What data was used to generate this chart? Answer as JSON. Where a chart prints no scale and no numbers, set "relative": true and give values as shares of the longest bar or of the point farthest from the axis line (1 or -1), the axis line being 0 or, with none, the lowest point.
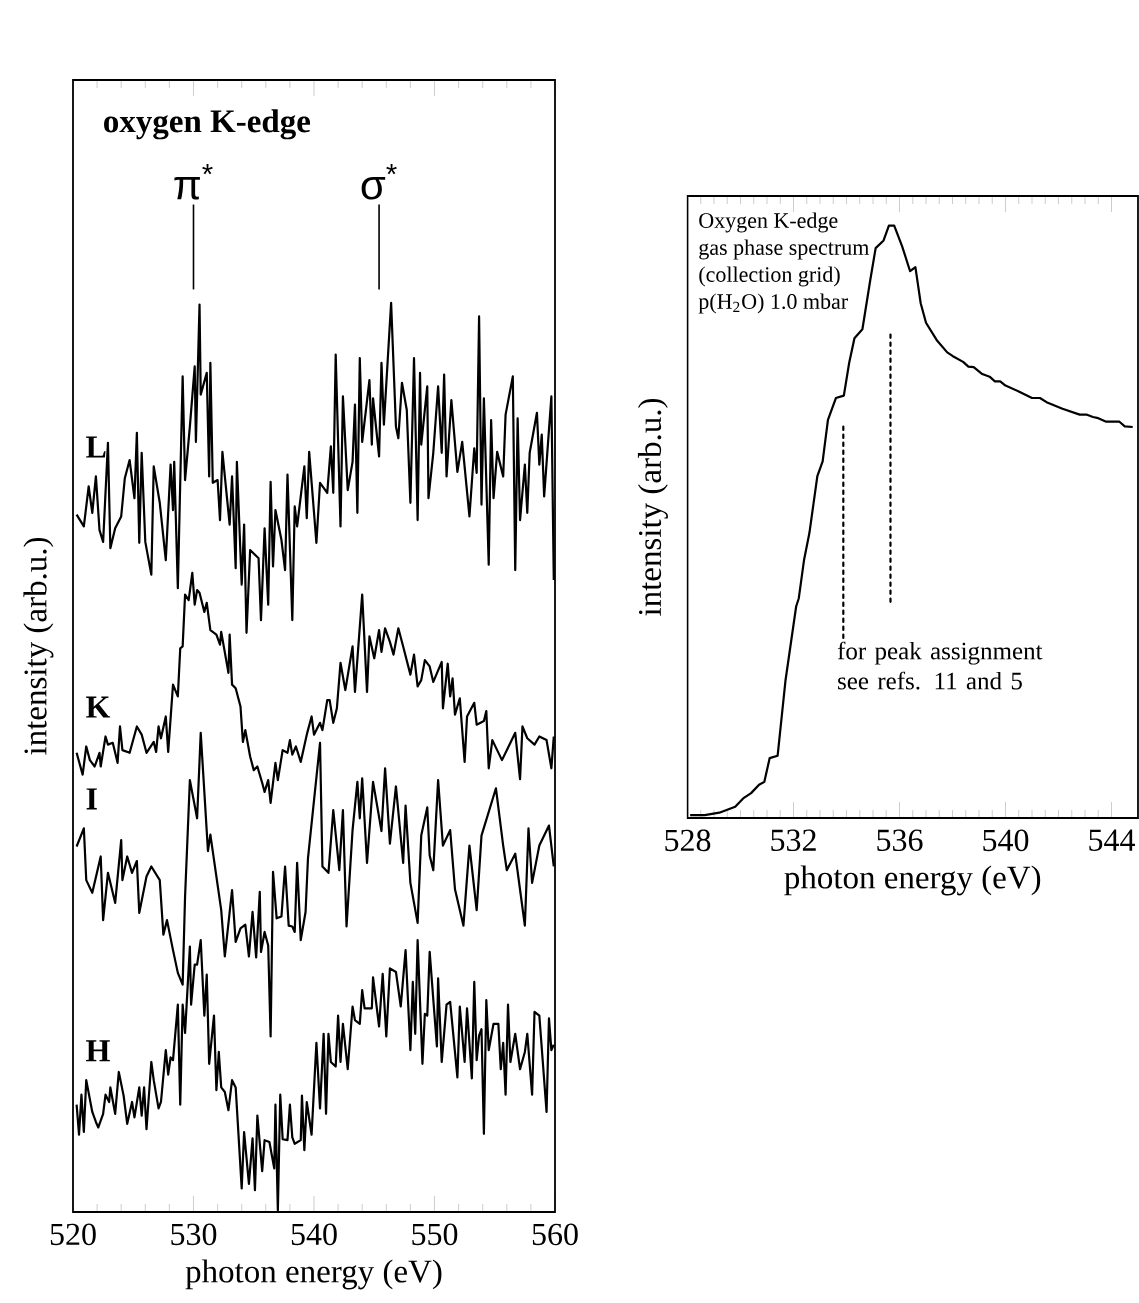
{
  "chart_data": [
    {
      "type": "line",
      "title": "oxygen K-edge",
      "xlabel": "photon energy (eV)",
      "ylabel": "intensity  (arb.u.)",
      "relative": true,
      "tick_labels": "x",
      "xlim": [
        520,
        560
      ],
      "xticks": [
        520,
        530,
        540,
        550,
        560
      ],
      "ref_lines": [
        {
          "axis": "x",
          "value": 530,
          "label": "π$^{*}$"
        },
        {
          "axis": "x",
          "value": 545.4,
          "label": "σ$^{*}$"
        }
      ],
      "series": [
        {
          "name": "L",
          "color": "#000000",
          "x": [
            520.3,
            520.9,
            521.3,
            521.6,
            521.9,
            522.2,
            522.5,
            522.9,
            523.1,
            523.5,
            524.0,
            524.3,
            524.7,
            525.1,
            525.3,
            525.5,
            525.7,
            526.0,
            526.5,
            526.7,
            527.2,
            527.7,
            528.1,
            528.3,
            528.4,
            528.7,
            529.1,
            529.3,
            529.7,
            530.1,
            530.2,
            530.5,
            530.6,
            531.1,
            531.3,
            531.4,
            531.6,
            532.0,
            532.2,
            532.4,
            533.0,
            533.2,
            533.5,
            533.6,
            534.0,
            534.2,
            534.4,
            534.7,
            535.4,
            535.6,
            535.9,
            536.2,
            536.4,
            536.6,
            536.8,
            537.3,
            537.6,
            537.8,
            538.2,
            538.4,
            538.6,
            539.2,
            539.4,
            539.6,
            540.2,
            540.5,
            541.1,
            541.4,
            541.6,
            541.8,
            542.2,
            542.4,
            542.8,
            543.2,
            543.4,
            543.6,
            543.8,
            544.0,
            544.6,
            544.8,
            544.9,
            545.4,
            545.6,
            545.8,
            546.4,
            546.8,
            547.0,
            547.3,
            547.7,
            548.0,
            548.3,
            548.6,
            548.8,
            548.9,
            549.4,
            549.5,
            549.9,
            550.3,
            550.6,
            550.8,
            551.0,
            551.4,
            551.9,
            552.3,
            552.9,
            553.3,
            553.5,
            553.7,
            553.9,
            554.1,
            554.5,
            554.7,
            554.9,
            555.2,
            555.7,
            555.9,
            556.5,
            556.7,
            556.9,
            557.1,
            557.5,
            557.7,
            557.9,
            558.5,
            558.7,
            558.9,
            559.1,
            559.7,
            559.9
          ],
          "values": [
            0.767,
            0.754,
            0.798,
            0.769,
            0.809,
            0.75,
            0.737,
            0.846,
            0.73,
            0.752,
            0.765,
            0.807,
            0.827,
            0.785,
            0.857,
            0.736,
            0.835,
            0.737,
            0.701,
            0.82,
            0.78,
            0.717,
            0.822,
            0.772,
            0.825,
            0.686,
            0.919,
            0.805,
            0.864,
            0.93,
            0.847,
            0.998,
            0.899,
            0.923,
            0.809,
            0.934,
            0.802,
            0.805,
            0.761,
            0.836,
            0.756,
            0.809,
            0.708,
            0.825,
            0.69,
            0.756,
            0.637,
            0.728,
            0.719,
            0.651,
            0.752,
            0.668,
            0.803,
            0.71,
            0.772,
            0.739,
            0.706,
            0.811,
            0.651,
            0.776,
            0.754,
            0.82,
            0.763,
            0.836,
            0.736,
            0.802,
            0.791,
            0.842,
            0.791,
            0.943,
            0.754,
            0.897,
            0.794,
            0.825,
            0.888,
            0.769,
            0.939,
            0.847,
            0.915,
            0.844,
            0.895,
            0.831,
            0.934,
            0.866,
            1.0,
            0.864,
            0.851,
            0.912,
            0.882,
            0.78,
            0.939,
            0.761,
            0.923,
            0.844,
            0.908,
            0.785,
            0.835,
            0.908,
            0.835,
            0.921,
            0.809,
            0.893,
            0.814,
            0.847,
            0.765,
            0.84,
            0.813,
            0.985,
            0.778,
            0.895,
            0.712,
            0.871,
            0.785,
            0.836,
            0.809,
            0.877,
            0.919,
            0.706,
            0.873,
            0.761,
            0.822,
            0.769,
            0.835,
            0.879,
            0.822,
            0.855,
            0.787,
            0.897,
            0.695
          ]
        },
        {
          "name": "K",
          "color": "#000000",
          "x": [
            520.3,
            520.8,
            521.1,
            521.4,
            521.8,
            522.2,
            522.3,
            522.7,
            522.9,
            523.3,
            523.7,
            523.9,
            524.1,
            524.7,
            525.3,
            525.7,
            526.1,
            526.7,
            526.9,
            527.1,
            527.3,
            527.7,
            527.9,
            528.3,
            528.7,
            528.9,
            529.1,
            529.3,
            529.6,
            529.9,
            530.1,
            530.3,
            530.5,
            530.9,
            531.1,
            531.4,
            531.9,
            532.2,
            532.3,
            532.9,
            533.0,
            533.2,
            533.5,
            533.9,
            534.1,
            534.3,
            534.7,
            535.0,
            535.3,
            535.7,
            535.9,
            536.2,
            536.4,
            536.8,
            537.0,
            537.4,
            537.8,
            538.0,
            538.2,
            538.5,
            538.9,
            539.4,
            539.8,
            540.0,
            540.5,
            540.7,
            541.1,
            541.3,
            541.6,
            541.9,
            542.2,
            542.6,
            543.2,
            543.4,
            544.0,
            544.4,
            544.6,
            545.0,
            545.4,
            545.6,
            545.9,
            546.3,
            546.6,
            547.0,
            547.4,
            548.0,
            548.3,
            548.6,
            548.9,
            549.2,
            549.6,
            549.9,
            550.6,
            550.7,
            551.1,
            551.3,
            551.5,
            551.7,
            552.1,
            552.5,
            552.7,
            553.3,
            553.5,
            554.1,
            554.3,
            554.5,
            554.8,
            555.6,
            556.3,
            556.7,
            557.1,
            557.3,
            557.7,
            558.3,
            558.7,
            559.3,
            559.7,
            559.9
          ],
          "values": [
            0.505,
            0.481,
            0.512,
            0.497,
            0.49,
            0.505,
            0.49,
            0.523,
            0.514,
            0.516,
            0.494,
            0.534,
            0.508,
            0.505,
            0.534,
            0.525,
            0.505,
            0.517,
            0.506,
            0.534,
            0.521,
            0.545,
            0.506,
            0.58,
            0.567,
            0.62,
            0.622,
            0.679,
            0.673,
            0.703,
            0.668,
            0.684,
            0.681,
            0.66,
            0.67,
            0.64,
            0.635,
            0.624,
            0.638,
            0.593,
            0.635,
            0.58,
            0.576,
            0.556,
            0.517,
            0.53,
            0.501,
            0.486,
            0.49,
            0.472,
            0.462,
            0.475,
            0.45,
            0.494,
            0.475,
            0.508,
            0.505,
            0.519,
            0.503,
            0.512,
            0.495,
            0.525,
            0.545,
            0.525,
            0.538,
            0.53,
            0.563,
            0.563,
            0.538,
            0.554,
            0.604,
            0.574,
            0.622,
            0.572,
            0.679,
            0.572,
            0.633,
            0.609,
            0.64,
            0.616,
            0.642,
            0.627,
            0.613,
            0.642,
            0.622,
            0.591,
            0.613,
            0.578,
            0.585,
            0.607,
            0.6,
            0.583,
            0.605,
            0.554,
            0.603,
            0.567,
            0.587,
            0.547,
            0.565,
            0.495,
            0.545,
            0.56,
            0.536,
            0.54,
            0.551,
            0.488,
            0.519,
            0.497,
            0.516,
            0.527,
            0.476,
            0.534,
            0.521,
            0.514,
            0.523,
            0.519,
            0.488,
            0.523
          ]
        },
        {
          "name": "I",
          "color": "#000000",
          "x": [
            520.3,
            520.9,
            521.1,
            521.6,
            522.3,
            522.5,
            522.9,
            523.5,
            524.0,
            524.1,
            524.5,
            524.9,
            525.3,
            525.5,
            526.1,
            526.5,
            527.2,
            527.5,
            527.8,
            528.3,
            528.7,
            529.1,
            529.3,
            529.7,
            530.3,
            530.6,
            531.2,
            531.4,
            532.3,
            532.6,
            533.2,
            533.5,
            533.9,
            534.3,
            534.6,
            534.9,
            535.2,
            535.5,
            535.6,
            535.9,
            536.2,
            536.4,
            536.6,
            536.9,
            537.3,
            537.6,
            537.9,
            538.2,
            538.4,
            538.6,
            538.9,
            539.3,
            539.5,
            540.5,
            540.7,
            541.2,
            541.6,
            542.1,
            542.4,
            542.7,
            543.2,
            543.6,
            543.8,
            544.0,
            544.4,
            544.9,
            545.6,
            545.9,
            546.3,
            546.8,
            547.4,
            547.6,
            548.0,
            548.6,
            548.9,
            549.4,
            549.6,
            549.9,
            550.3,
            550.7,
            551.3,
            551.7,
            552.4,
            552.9,
            553.5,
            553.9,
            554.5,
            555.1,
            555.7,
            556.0,
            556.7,
            557.5,
            557.8,
            558.1,
            558.7,
            559.5,
            559.9
          ],
          "values": [
            0.402,
            0.422,
            0.365,
            0.351,
            0.391,
            0.321,
            0.373,
            0.34,
            0.409,
            0.365,
            0.391,
            0.373,
            0.386,
            0.329,
            0.369,
            0.38,
            0.365,
            0.305,
            0.321,
            0.288,
            0.263,
            0.25,
            0.347,
            0.475,
            0.433,
            0.527,
            0.397,
            0.415,
            0.332,
            0.281,
            0.354,
            0.297,
            0.312,
            0.316,
            0.281,
            0.33,
            0.28,
            0.352,
            0.286,
            0.308,
            0.293,
            0.193,
            0.374,
            0.323,
            0.325,
            0.38,
            0.315,
            0.314,
            0.308,
            0.384,
            0.299,
            0.33,
            0.389,
            0.516,
            0.38,
            0.373,
            0.442,
            0.376,
            0.442,
            0.314,
            0.42,
            0.473,
            0.433,
            0.477,
            0.384,
            0.473,
            0.419,
            0.488,
            0.405,
            0.468,
            0.384,
            0.447,
            0.362,
            0.318,
            0.414,
            0.445,
            0.392,
            0.376,
            0.475,
            0.403,
            0.42,
            0.355,
            0.315,
            0.403,
            0.332,
            0.414,
            0.44,
            0.466,
            0.403,
            0.376,
            0.394,
            0.315,
            0.422,
            0.362,
            0.403,
            0.425,
            0.38
          ]
        },
        {
          "name": "H",
          "color": "#000000",
          "x": [
            520.3,
            520.5,
            520.7,
            520.9,
            521.1,
            521.6,
            521.9,
            522.1,
            522.5,
            522.7,
            523.0,
            523.1,
            523.5,
            523.8,
            524.2,
            524.5,
            524.9,
            525.1,
            525.5,
            525.7,
            525.9,
            526.1,
            526.5,
            526.7,
            527.1,
            527.3,
            527.7,
            527.9,
            528.1,
            528.3,
            528.7,
            528.9,
            529.1,
            529.3,
            529.7,
            529.8,
            530.1,
            530.3,
            530.6,
            530.9,
            531.1,
            531.3,
            531.7,
            531.9,
            532.1,
            532.3,
            532.6,
            532.9,
            533.2,
            533.5,
            534.0,
            534.2,
            534.6,
            534.9,
            535.1,
            535.3,
            535.7,
            535.9,
            536.3,
            536.7,
            536.8,
            537.0,
            537.2,
            537.4,
            537.8,
            538.0,
            538.2,
            538.4,
            538.9,
            539.0,
            539.2,
            539.4,
            539.8,
            540.2,
            540.5,
            540.8,
            541.0,
            541.2,
            541.4,
            541.8,
            542.0,
            542.2,
            542.4,
            542.8,
            543.2,
            543.4,
            543.8,
            544.0,
            544.2,
            544.8,
            544.9,
            545.4,
            545.7,
            546.0,
            546.3,
            546.8,
            547.2,
            547.6,
            548.0,
            548.2,
            548.4,
            548.6,
            549.0,
            549.2,
            549.4,
            549.6,
            550.2,
            550.3,
            550.6,
            551.0,
            551.3,
            551.9,
            552.1,
            552.5,
            552.7,
            553.1,
            553.3,
            553.5,
            553.7,
            553.9,
            554.1,
            554.3,
            554.5,
            554.9,
            555.3,
            555.5,
            555.7,
            555.9,
            556.1,
            556.3,
            556.7,
            557.1,
            557.5,
            557.7,
            558.1,
            558.3,
            558.7,
            559.3,
            559.5,
            559.7,
            559.9
          ],
          "values": [
            0.118,
            0.085,
            0.129,
            0.088,
            0.145,
            0.11,
            0.099,
            0.093,
            0.108,
            0.129,
            0.121,
            0.137,
            0.108,
            0.154,
            0.128,
            0.097,
            0.121,
            0.104,
            0.137,
            0.106,
            0.137,
            0.091,
            0.165,
            0.145,
            0.114,
            0.121,
            0.178,
            0.151,
            0.17,
            0.167,
            0.228,
            0.118,
            0.228,
            0.197,
            0.292,
            0.228,
            0.272,
            0.272,
            0.299,
            0.216,
            0.261,
            0.163,
            0.216,
            0.134,
            0.176,
            0.137,
            0.132,
            0.112,
            0.145,
            0.137,
            0.026,
            0.088,
            0.031,
            0.081,
            0.024,
            0.106,
            0.045,
            0.079,
            0.077,
            0.048,
            0.118,
            0.002,
            0.129,
            0.08,
            0.079,
            0.118,
            0.082,
            0.075,
            0.079,
            0.128,
            0.068,
            0.121,
            0.085,
            0.186,
            0.114,
            0.196,
            0.108,
            0.196,
            0.165,
            0.16,
            0.216,
            0.165,
            0.207,
            0.157,
            0.226,
            0.211,
            0.207,
            0.244,
            0.224,
            0.224,
            0.258,
            0.204,
            0.262,
            0.193,
            0.268,
            0.264,
            0.226,
            0.288,
            0.178,
            0.253,
            0.196,
            0.299,
            0.163,
            0.218,
            0.216,
            0.286,
            0.182,
            0.257,
            0.165,
            0.228,
            0.231,
            0.148,
            0.226,
            0.165,
            0.224,
            0.147,
            0.253,
            0.167,
            0.194,
            0.201,
            0.086,
            0.233,
            0.178,
            0.207,
            0.207,
            0.157,
            0.186,
            0.129,
            0.228,
            0.165,
            0.196,
            0.157,
            0.176,
            0.196,
            0.129,
            0.22,
            0.216,
            0.11,
            0.213,
            0.178,
            0.184
          ]
        }
      ]
    },
    {
      "type": "line",
      "title": "Oxygen K-edge",
      "xlabel": "photon energy  (eV)",
      "ylabel": "intensity  (arb.u.)",
      "relative": true,
      "tick_labels": "x",
      "xlim": [
        528,
        545
      ],
      "xticks": [
        528,
        532,
        536,
        540,
        544
      ],
      "annotations": [
        "gas phase spectrum",
        "(collection grid)",
        "p(H$_{2}$O) 1.0 mbar",
        "for peak assignment see refs. 11 and 5"
      ],
      "series": [
        {
          "color": "#000000",
          "x": [
            528.1,
            528.65,
            529.2,
            529.8,
            530.1,
            530.4,
            530.7,
            530.9,
            531.1,
            531.4,
            531.7,
            532.1,
            532.2,
            532.4,
            532.6,
            532.9,
            533.1,
            533.3,
            533.6,
            533.9,
            534.1,
            534.3,
            534.6,
            534.9,
            535.1,
            535.4,
            535.6,
            535.8,
            536.1,
            536.4,
            536.6,
            536.8,
            537.0,
            537.4,
            537.8,
            538.0,
            538.4,
            538.6,
            538.8,
            539.1,
            539.4,
            539.6,
            539.8,
            540.0,
            540.5,
            541.0,
            541.3,
            541.55,
            542.15,
            542.8,
            543.05,
            543.3,
            543.5,
            543.8,
            544.3,
            544.5,
            544.8
          ],
          "values": [
            0.005,
            0.005,
            0.009,
            0.019,
            0.033,
            0.042,
            0.056,
            0.061,
            0.101,
            0.105,
            0.233,
            0.357,
            0.371,
            0.436,
            0.481,
            0.577,
            0.602,
            0.672,
            0.709,
            0.713,
            0.768,
            0.81,
            0.825,
            0.909,
            0.962,
            0.975,
            1.0,
            1.0,
            0.965,
            0.923,
            0.93,
            0.869,
            0.836,
            0.807,
            0.786,
            0.78,
            0.77,
            0.762,
            0.761,
            0.75,
            0.745,
            0.737,
            0.737,
            0.73,
            0.72,
            0.709,
            0.709,
            0.702,
            0.691,
            0.681,
            0.681,
            0.677,
            0.675,
            0.669,
            0.669,
            0.661,
            0.66
          ]
        },
        {
          "color": "#000000",
          "line_style": "dotted",
          "x": [
            533.88,
            533.88
          ],
          "values": [
            0.304,
            0.662
          ]
        },
        {
          "color": "#000000",
          "line_style": "dotted",
          "x": [
            535.66,
            535.66
          ],
          "values": [
            0.365,
            0.819
          ]
        }
      ]
    }
  ]
}
